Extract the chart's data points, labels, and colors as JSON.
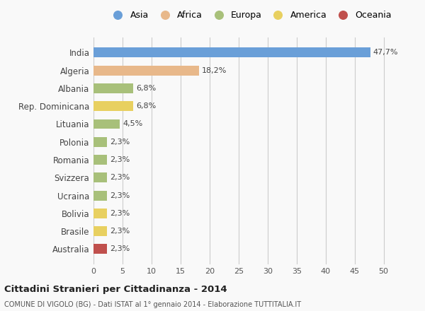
{
  "countries": [
    "India",
    "Algeria",
    "Albania",
    "Rep. Dominicana",
    "Lituania",
    "Polonia",
    "Romania",
    "Svizzera",
    "Ucraina",
    "Bolivia",
    "Brasile",
    "Australia"
  ],
  "values": [
    47.7,
    18.2,
    6.8,
    6.8,
    4.5,
    2.3,
    2.3,
    2.3,
    2.3,
    2.3,
    2.3,
    2.3
  ],
  "labels": [
    "47,7%",
    "18,2%",
    "6,8%",
    "6,8%",
    "4,5%",
    "2,3%",
    "2,3%",
    "2,3%",
    "2,3%",
    "2,3%",
    "2,3%",
    "2,3%"
  ],
  "colors": [
    "#6a9fd8",
    "#e8b88a",
    "#a8c07a",
    "#e8d060",
    "#a8c07a",
    "#a8c07a",
    "#a8c07a",
    "#a8c07a",
    "#a8c07a",
    "#e8d060",
    "#e8d060",
    "#c0504d"
  ],
  "legend_labels": [
    "Asia",
    "Africa",
    "Europa",
    "America",
    "Oceania"
  ],
  "legend_colors": [
    "#6a9fd8",
    "#e8b88a",
    "#a8c07a",
    "#e8d060",
    "#c0504d"
  ],
  "xlim": [
    0,
    52
  ],
  "xticks": [
    0,
    5,
    10,
    15,
    20,
    25,
    30,
    35,
    40,
    45,
    50
  ],
  "title": "Cittadini Stranieri per Cittadinanza - 2014",
  "subtitle": "COMUNE DI VIGOLO (BG) - Dati ISTAT al 1° gennaio 2014 - Elaborazione TUTTITALIA.IT",
  "background_color": "#f9f9f9",
  "grid_color": "#cccccc"
}
